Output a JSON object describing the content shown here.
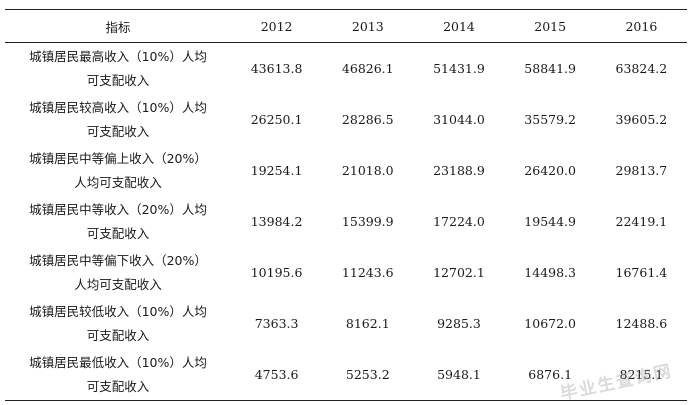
{
  "table": {
    "header": [
      "指标",
      "2012",
      "2013",
      "2014",
      "2015",
      "2016"
    ],
    "rows": [
      {
        "label": [
          "城镇居民最高收入（10%）人均",
          "可支配收入"
        ],
        "values": [
          "43613.8",
          "46826.1",
          "51431.9",
          "58841.9",
          "63824.2"
        ]
      },
      {
        "label": [
          "城镇居民较高收入（10%）人均",
          "可支配收入"
        ],
        "values": [
          "26250.1",
          "28286.5",
          "31044.0",
          "35579.2",
          "39605.2"
        ]
      },
      {
        "label": [
          "城镇居民中等偏上收入（20%）",
          "人均可支配收入"
        ],
        "values": [
          "19254.1",
          "21018.0",
          "23188.9",
          "26420.0",
          "29813.7"
        ]
      },
      {
        "label": [
          "城镇居民中等收入（20%）人均",
          "可支配收入"
        ],
        "values": [
          "13984.2",
          "15399.9",
          "17224.0",
          "19544.9",
          "22419.1"
        ]
      },
      {
        "label": [
          "城镇居民中等偏下收入（20%）",
          "人均可支配收入"
        ],
        "values": [
          "10195.6",
          "11243.6",
          "12702.1",
          "14498.3",
          "16761.4"
        ]
      },
      {
        "label": [
          "城镇居民较低收入（10%）人均",
          "可支配收入"
        ],
        "values": [
          "7363.3",
          "8162.1",
          "9285.3",
          "10672.0",
          "12488.6"
        ]
      },
      {
        "label": [
          "城镇居民最低收入（10%）人均",
          "可支配收入"
        ],
        "values": [
          "4753.6",
          "5253.2",
          "5948.1",
          "6876.1",
          "8215.1"
        ]
      }
    ]
  },
  "watermark": "毕业生查询网"
}
